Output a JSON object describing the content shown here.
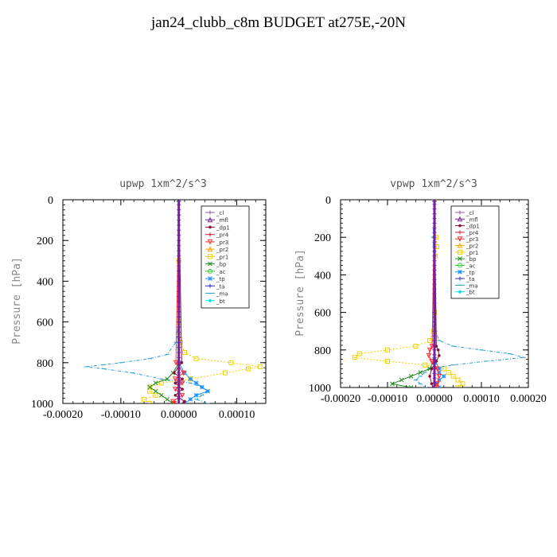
{
  "page": {
    "title": "jan24_clubb_c8m  BUDGET at275E,-20N"
  },
  "legend_entries": [
    {
      "label": "_cl",
      "color": "#8b5a9a",
      "marker": "plus"
    },
    {
      "label": "_mfl",
      "color": "#7b1fa2",
      "marker": "tri"
    },
    {
      "label": "_dp1",
      "color": "#8b1030",
      "marker": "dot"
    },
    {
      "label": "_pr4",
      "color": "#d02040",
      "marker": "plus"
    },
    {
      "label": "_pr3",
      "color": "#ff3030",
      "marker": "tridown"
    },
    {
      "label": "_pr2",
      "color": "#ffa500",
      "marker": "tri"
    },
    {
      "label": "_pr1",
      "color": "#f0d000",
      "marker": "square"
    },
    {
      "label": "_bp",
      "color": "#228b22",
      "marker": "x"
    },
    {
      "label": "_ac",
      "color": "#32cd32",
      "marker": "circle"
    },
    {
      "label": "_tp",
      "color": "#1e90ff",
      "marker": "star"
    },
    {
      "label": "_ta",
      "color": "#3030d0",
      "marker": "plus"
    },
    {
      "label": "_ma",
      "color": "#2ba0c8",
      "marker": "dash"
    },
    {
      "label": "_bt",
      "color": "#00e5ee",
      "marker": "diamond"
    }
  ],
  "chart_data": [
    {
      "type": "line",
      "title": "upwp   1xm^2/s^3",
      "ylabel": "Pressure  [hPa]",
      "xlabel": "",
      "xlim": [
        -0.0002,
        0.00015
      ],
      "ylim": [
        1000,
        0
      ],
      "xticks": [
        "-0.00020",
        "-0.00010",
        "0.00000",
        "0.00010"
      ],
      "xtick_values": [
        -0.0002,
        -0.0001,
        0,
        0.0001
      ],
      "yticks": [
        "0",
        "200",
        "400",
        "600",
        "800",
        "1000"
      ],
      "ytick_values": [
        0,
        200,
        400,
        600,
        800,
        1000
      ],
      "series": [
        {
          "name": "_pr1",
          "y": [
            0,
            300,
            600,
            700,
            750,
            780,
            800,
            820,
            830,
            850,
            880,
            900,
            920,
            940,
            960,
            980,
            1000
          ],
          "x": [
            0,
            0,
            0,
            3e-06,
            1e-05,
            3e-05,
            9e-05,
            0.00014,
            0.00012,
            8e-05,
            2e-05,
            -3e-05,
            -5e-05,
            -5e-05,
            -4e-05,
            -6e-05,
            -5e-05
          ]
        },
        {
          "name": "_ma",
          "y": [
            0,
            600,
            700,
            760,
            780,
            800,
            810,
            820,
            830,
            850,
            880,
            900,
            920,
            940,
            960,
            980,
            1000
          ],
          "x": [
            0,
            0,
            -5e-06,
            -2e-05,
            -5e-05,
            -0.0001,
            -0.00013,
            -0.00016,
            -0.00013,
            -8e-05,
            -3e-05,
            2e-05,
            4e-05,
            5e-05,
            4e-05,
            3e-05,
            5e-05
          ]
        },
        {
          "name": "_bp",
          "y": [
            0,
            800,
            850,
            880,
            900,
            920,
            940,
            960,
            980,
            1000
          ],
          "x": [
            0,
            0,
            -1e-05,
            -2e-05,
            -4e-05,
            -5e-05,
            -4e-05,
            -3e-05,
            -2e-05,
            -1e-05
          ]
        },
        {
          "name": "_tp",
          "y": [
            0,
            800,
            850,
            880,
            900,
            920,
            940,
            960,
            980,
            1000
          ],
          "x": [
            0,
            0,
            1e-05,
            2e-05,
            3e-05,
            4e-05,
            5e-05,
            3e-05,
            2e-05,
            1e-05
          ]
        },
        {
          "name": "_pr3",
          "y": [
            0,
            800,
            850,
            880,
            900,
            930,
            960,
            990,
            1000
          ],
          "x": [
            0,
            -5e-06,
            8e-06,
            -6e-06,
            6e-06,
            -6e-06,
            6e-06,
            -1e-05,
            -8e-06
          ]
        },
        {
          "name": "_dp1",
          "y": [
            0,
            800,
            850,
            880,
            900,
            930,
            960,
            990,
            1000
          ],
          "x": [
            0,
            5e-06,
            -8e-06,
            6e-06,
            -6e-06,
            6e-06,
            -6e-06,
            1e-05,
            8e-06
          ]
        },
        {
          "name": "_mfl",
          "y": [
            0,
            1000
          ],
          "x": [
            0,
            0
          ]
        }
      ],
      "legend_position": "top-right"
    },
    {
      "type": "line",
      "title": "vpwp   1xm^2/s^3",
      "ylabel": "Pressure  [hPa]",
      "xlabel": "",
      "xlim": [
        -0.0002,
        0.0002
      ],
      "ylim": [
        1000,
        0
      ],
      "xticks": [
        "-0.00020",
        "-0.00010",
        "0.00000",
        "0.00010",
        "0.00020"
      ],
      "xtick_values": [
        -0.0002,
        -0.0001,
        0,
        0.0001,
        0.0002
      ],
      "yticks": [
        "0",
        "200",
        "400",
        "600",
        "800",
        "1000"
      ],
      "ytick_values": [
        0,
        200,
        400,
        600,
        800,
        1000
      ],
      "series": [
        {
          "name": "_pr1",
          "y": [
            0,
            200,
            250,
            300,
            600,
            700,
            750,
            780,
            800,
            820,
            840,
            860,
            880,
            900,
            920,
            940,
            960,
            980,
            1000
          ],
          "x": [
            0,
            3e-06,
            5e-06,
            2e-06,
            0,
            -2e-06,
            -1e-05,
            -4e-05,
            -0.0001,
            -0.00016,
            -0.00017,
            -0.0001,
            -2e-05,
            2e-05,
            3e-05,
            4e-05,
            5e-05,
            6e-05,
            5e-05
          ]
        },
        {
          "name": "_ma",
          "y": [
            0,
            200,
            600,
            700,
            750,
            780,
            800,
            820,
            840,
            860,
            880,
            900,
            920,
            940,
            960,
            980,
            1000
          ],
          "x": [
            0,
            -3e-06,
            0,
            2e-06,
            1e-05,
            4e-05,
            0.0001,
            0.00016,
            0.00019,
            0.00011,
            4e-05,
            -1e-05,
            -2e-05,
            -3e-05,
            -4e-05,
            -3e-05,
            -2e-05
          ]
        },
        {
          "name": "_bp",
          "y": [
            0,
            850,
            900,
            920,
            940,
            960,
            980,
            1000
          ],
          "x": [
            0,
            0,
            -1e-05,
            -3e-05,
            -5e-05,
            -7e-05,
            -9e-05,
            -5e-05
          ]
        },
        {
          "name": "_tp",
          "y": [
            0,
            850,
            900,
            920,
            940,
            960,
            980,
            1000
          ],
          "x": [
            0,
            0,
            1e-05,
            1e-05,
            2e-05,
            1e-05,
            5e-06,
            1e-05
          ]
        },
        {
          "name": "_pr3",
          "y": [
            0,
            780,
            800,
            830,
            860,
            900,
            940,
            980,
            1000
          ],
          "x": [
            0,
            -5e-06,
            -1e-05,
            -1.2e-05,
            -6e-06,
            6e-06,
            1e-05,
            6e-06,
            4e-06
          ]
        },
        {
          "name": "_dp1",
          "y": [
            0,
            780,
            800,
            830,
            860,
            900,
            940,
            980,
            1000
          ],
          "x": [
            0,
            4e-06,
            8e-06,
            1e-05,
            4e-06,
            -6e-06,
            -1e-05,
            -6e-06,
            -3e-06
          ]
        },
        {
          "name": "_mfl",
          "y": [
            0,
            1000
          ],
          "x": [
            0,
            0
          ]
        }
      ],
      "legend_position": "top-right"
    }
  ]
}
